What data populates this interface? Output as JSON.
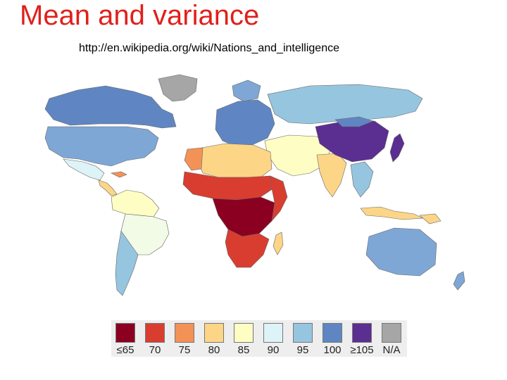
{
  "slide": {
    "title": "Mean and variance",
    "source_url": "http://en.wikipedia.org/wiki/Nations_and_intelligence"
  },
  "map": {
    "subject": "world-map-national-iq-choropleth",
    "legend": [
      {
        "label": "≤65",
        "color": "#8b0020"
      },
      {
        "label": "70",
        "color": "#d93d2f"
      },
      {
        "label": "75",
        "color": "#f39257"
      },
      {
        "label": "80",
        "color": "#fdd587"
      },
      {
        "label": "85",
        "color": "#fefdc4"
      },
      {
        "label": "90",
        "color": "#def3f7"
      },
      {
        "label": "95",
        "color": "#96c5df"
      },
      {
        "label": "100",
        "color": "#5f86c2"
      },
      {
        "label": "≥105",
        "color": "#5b2e91"
      },
      {
        "label": "N/A",
        "color": "#a6a6a6"
      }
    ]
  }
}
